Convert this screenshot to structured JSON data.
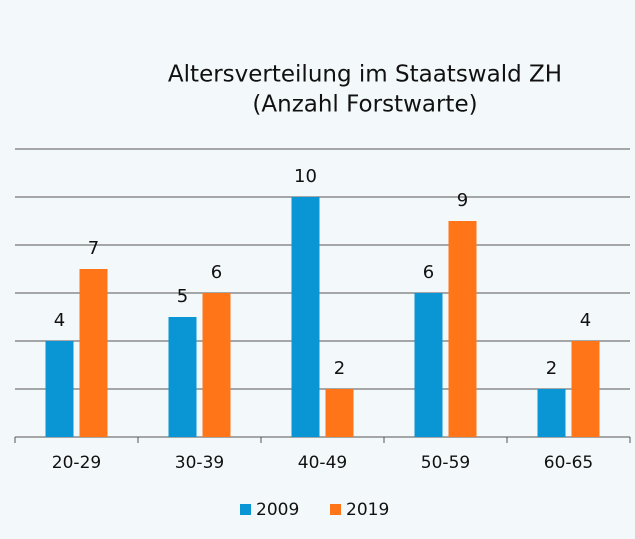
{
  "chart_data": {
    "type": "bar",
    "title": "Altersverteilung im Staatswald ZH",
    "subtitle": "(Anzahl Forstwarte)",
    "categories": [
      "20-29",
      "30-39",
      "40-49",
      "50-59",
      "60-65"
    ],
    "series": [
      {
        "name": "2009",
        "color": "#0a96d4",
        "values": [
          4,
          5,
          10,
          6,
          2
        ]
      },
      {
        "name": "2019",
        "color": "#ff7518",
        "values": [
          7,
          6,
          2,
          9,
          4
        ]
      }
    ],
    "ylim": [
      0,
      12
    ],
    "yticks": [
      0,
      2,
      4,
      6,
      8,
      10,
      12
    ],
    "grid": true,
    "legend": "bottom"
  }
}
